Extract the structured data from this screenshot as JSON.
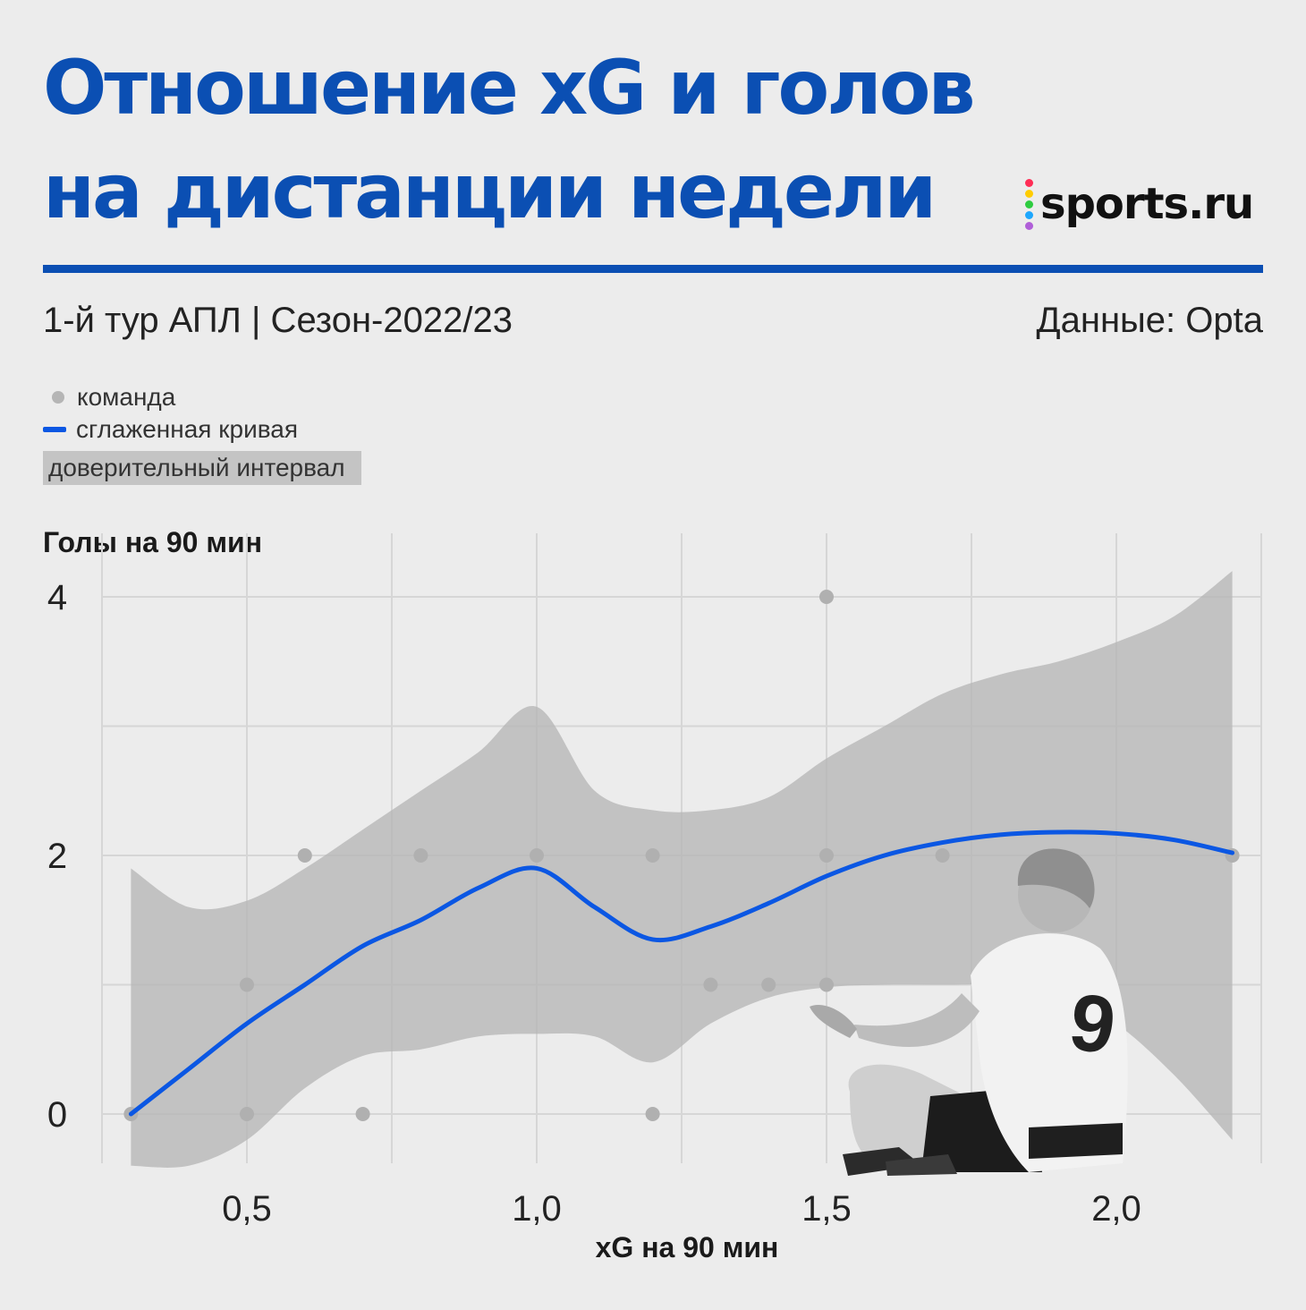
{
  "header": {
    "title_line1": "Отношение xG и голов",
    "title_line2": "на дистанции недели",
    "logo_text": "sports.ru",
    "logo_dot_colors": [
      "#ff2d55",
      "#ffcc00",
      "#2ecc40",
      "#1ea7fd",
      "#b05fd8"
    ],
    "subtitle": "1-й тур АПЛ | Сезон-2022/23",
    "source": "Данные: Opta"
  },
  "legend": {
    "points": "команда",
    "curve": "сглаженная кривая",
    "band": "доверительный интервал"
  },
  "colors": {
    "accent": "#0b4fb3",
    "curve": "#0b57e3",
    "band": "#b4b4b4",
    "points": "#b0b0b0",
    "grid": "#d6d6d6"
  },
  "chart_data": {
    "type": "scatter",
    "xlabel": "xG на 90 мин",
    "ylabel": "Голы на 90 мин",
    "xlim": [
      0.2,
      2.22
    ],
    "ylim": [
      -0.4,
      4.5
    ],
    "x_ticks": [
      0.5,
      1.0,
      1.5,
      2.0
    ],
    "x_tick_labels": [
      "0,5",
      "1,0",
      "1,5",
      "2,0"
    ],
    "y_ticks": [
      0,
      2,
      4
    ],
    "y_tick_labels": [
      "0",
      "2",
      "4"
    ],
    "grid": true,
    "legend_position": "top-left",
    "points": [
      {
        "x": 0.3,
        "y": 0
      },
      {
        "x": 0.5,
        "y": 0
      },
      {
        "x": 0.5,
        "y": 1
      },
      {
        "x": 0.6,
        "y": 2
      },
      {
        "x": 0.7,
        "y": 0
      },
      {
        "x": 0.8,
        "y": 2
      },
      {
        "x": 1.0,
        "y": 2
      },
      {
        "x": 1.2,
        "y": 2
      },
      {
        "x": 1.2,
        "y": 0
      },
      {
        "x": 1.3,
        "y": 1
      },
      {
        "x": 1.4,
        "y": 1
      },
      {
        "x": 1.5,
        "y": 4
      },
      {
        "x": 1.5,
        "y": 2
      },
      {
        "x": 1.5,
        "y": 1
      },
      {
        "x": 1.7,
        "y": 2
      },
      {
        "x": 2.2,
        "y": 2
      }
    ],
    "smooth_curve": [
      {
        "x": 0.3,
        "y": 0.0
      },
      {
        "x": 0.4,
        "y": 0.35
      },
      {
        "x": 0.5,
        "y": 0.7
      },
      {
        "x": 0.6,
        "y": 1.0
      },
      {
        "x": 0.7,
        "y": 1.3
      },
      {
        "x": 0.8,
        "y": 1.5
      },
      {
        "x": 0.9,
        "y": 1.75
      },
      {
        "x": 1.0,
        "y": 1.9
      },
      {
        "x": 1.1,
        "y": 1.6
      },
      {
        "x": 1.2,
        "y": 1.35
      },
      {
        "x": 1.3,
        "y": 1.45
      },
      {
        "x": 1.4,
        "y": 1.63
      },
      {
        "x": 1.5,
        "y": 1.84
      },
      {
        "x": 1.6,
        "y": 2.0
      },
      {
        "x": 1.7,
        "y": 2.1
      },
      {
        "x": 1.8,
        "y": 2.16
      },
      {
        "x": 1.9,
        "y": 2.18
      },
      {
        "x": 2.0,
        "y": 2.17
      },
      {
        "x": 2.1,
        "y": 2.12
      },
      {
        "x": 2.2,
        "y": 2.02
      }
    ],
    "confidence_upper": [
      {
        "x": 0.3,
        "y": 1.9
      },
      {
        "x": 0.4,
        "y": 1.6
      },
      {
        "x": 0.5,
        "y": 1.65
      },
      {
        "x": 0.6,
        "y": 1.9
      },
      {
        "x": 0.7,
        "y": 2.2
      },
      {
        "x": 0.8,
        "y": 2.5
      },
      {
        "x": 0.9,
        "y": 2.8
      },
      {
        "x": 1.0,
        "y": 3.15
      },
      {
        "x": 1.1,
        "y": 2.5
      },
      {
        "x": 1.2,
        "y": 2.35
      },
      {
        "x": 1.3,
        "y": 2.35
      },
      {
        "x": 1.4,
        "y": 2.45
      },
      {
        "x": 1.5,
        "y": 2.75
      },
      {
        "x": 1.6,
        "y": 3.0
      },
      {
        "x": 1.7,
        "y": 3.25
      },
      {
        "x": 1.8,
        "y": 3.4
      },
      {
        "x": 1.9,
        "y": 3.5
      },
      {
        "x": 2.0,
        "y": 3.65
      },
      {
        "x": 2.1,
        "y": 3.85
      },
      {
        "x": 2.2,
        "y": 4.2
      }
    ],
    "confidence_lower": [
      {
        "x": 0.3,
        "y": -0.4
      },
      {
        "x": 0.4,
        "y": -0.4
      },
      {
        "x": 0.5,
        "y": -0.2
      },
      {
        "x": 0.6,
        "y": 0.2
      },
      {
        "x": 0.7,
        "y": 0.45
      },
      {
        "x": 0.8,
        "y": 0.5
      },
      {
        "x": 0.9,
        "y": 0.6
      },
      {
        "x": 1.0,
        "y": 0.62
      },
      {
        "x": 1.1,
        "y": 0.6
      },
      {
        "x": 1.2,
        "y": 0.4
      },
      {
        "x": 1.3,
        "y": 0.7
      },
      {
        "x": 1.4,
        "y": 0.9
      },
      {
        "x": 1.5,
        "y": 0.98
      },
      {
        "x": 1.6,
        "y": 1.0
      },
      {
        "x": 1.7,
        "y": 1.0
      },
      {
        "x": 1.8,
        "y": 1.0
      },
      {
        "x": 1.9,
        "y": 0.95
      },
      {
        "x": 2.0,
        "y": 0.7
      },
      {
        "x": 2.1,
        "y": 0.3
      },
      {
        "x": 2.2,
        "y": -0.2
      }
    ]
  }
}
